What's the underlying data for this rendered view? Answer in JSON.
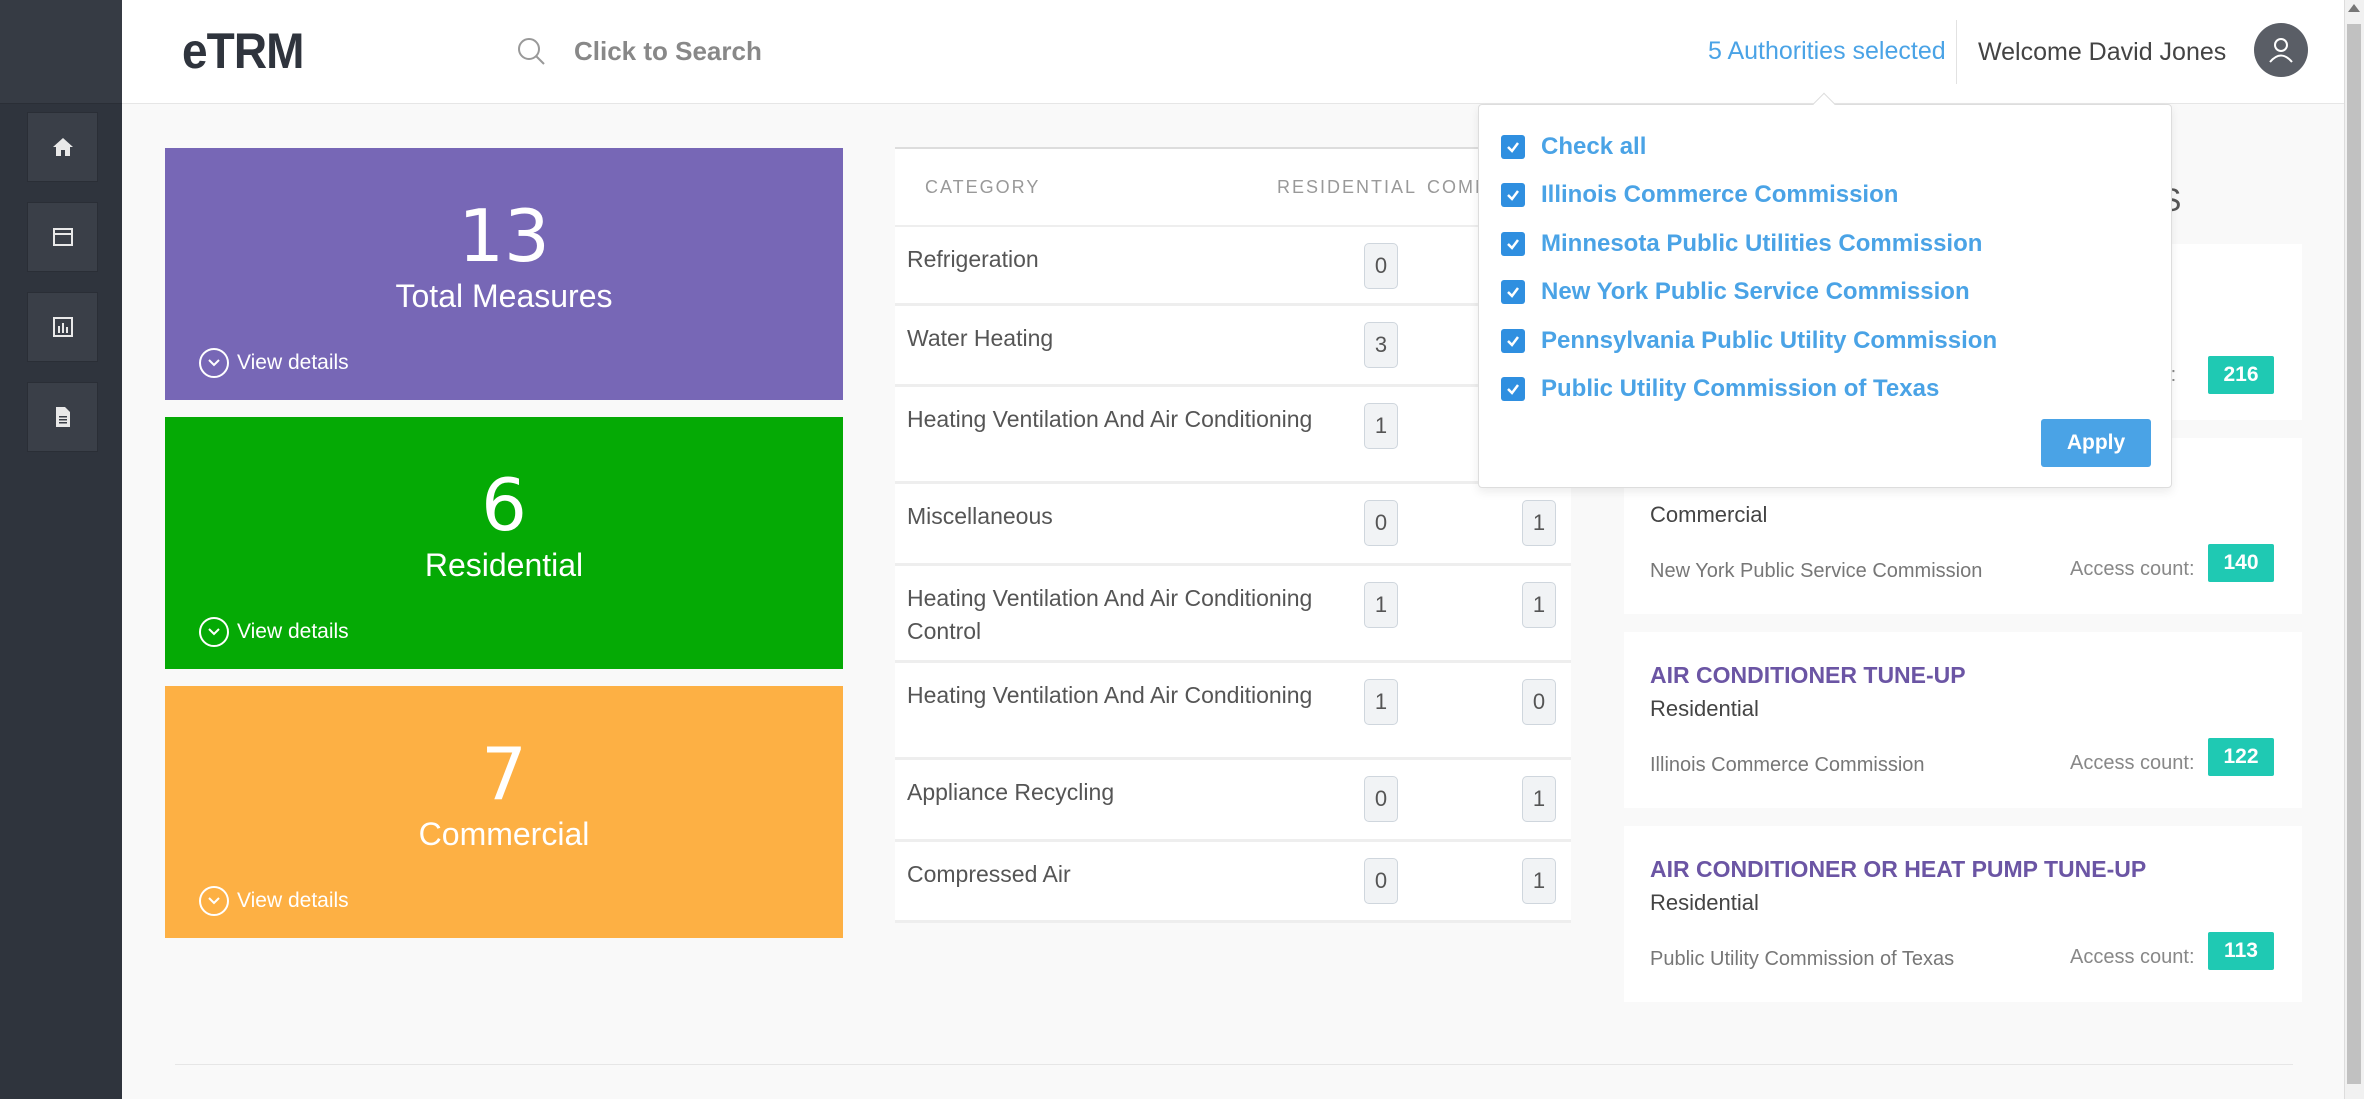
{
  "app": {
    "title": "eTRM"
  },
  "header": {
    "search_placeholder": "Click to Search",
    "authorities_selected": "5 Authorities selected",
    "welcome": "Welcome David Jones"
  },
  "sidebar": {
    "items": [
      {
        "icon": "home-icon"
      },
      {
        "icon": "window-icon"
      },
      {
        "icon": "chart-icon"
      },
      {
        "icon": "document-icon"
      }
    ]
  },
  "tiles": [
    {
      "value": "13",
      "label": "Total Measures",
      "details": "View details",
      "color": "#7767b6"
    },
    {
      "value": "6",
      "label": "Residential",
      "details": "View details",
      "color": "#05aa05"
    },
    {
      "value": "7",
      "label": "Commercial",
      "details": "View details",
      "color": "#fdb044"
    }
  ],
  "categories": {
    "headers": {
      "category": "CATEGORY",
      "residential": "RESIDENTIAL",
      "commercial": "COMM"
    },
    "rows": [
      {
        "name": "Refrigeration",
        "residential": "0",
        "commercial": ""
      },
      {
        "name": "Water Heating",
        "residential": "3",
        "commercial": ""
      },
      {
        "name": "Heating Ventilation And Air Conditioning",
        "residential": "1",
        "commercial": ""
      },
      {
        "name": "Miscellaneous",
        "residential": "0",
        "commercial": "1"
      },
      {
        "name": "Heating Ventilation And Air Conditioning Control",
        "residential": "1",
        "commercial": "1"
      },
      {
        "name": "Heating Ventilation And Air Conditioning",
        "residential": "1",
        "commercial": "0"
      },
      {
        "name": "Appliance Recycling",
        "residential": "0",
        "commercial": "1"
      },
      {
        "name": "Compressed Air",
        "residential": "0",
        "commercial": "1"
      }
    ]
  },
  "measures": {
    "title_fragment": "S",
    "access_label": "Access count:",
    "access_label_partial": "nt:",
    "items": [
      {
        "title": "",
        "type": "",
        "authority": "",
        "count": "216"
      },
      {
        "title": "",
        "type": "Commercial",
        "authority": "New York Public Service Commission",
        "count": "140"
      },
      {
        "title": "AIR CONDITIONER TUNE-UP",
        "type": "Residential",
        "authority": "Illinois Commerce Commission",
        "count": "122"
      },
      {
        "title": "AIR CONDITIONER OR HEAT PUMP TUNE-UP",
        "type": "Residential",
        "authority": "Public Utility Commission of Texas",
        "count": "113"
      }
    ]
  },
  "authority_dropdown": {
    "options": [
      {
        "label": "Check all",
        "checked": true
      },
      {
        "label": "Illinois Commerce Commission",
        "checked": true
      },
      {
        "label": "Minnesota Public Utilities Commission",
        "checked": true
      },
      {
        "label": "New York Public Service Commission",
        "checked": true
      },
      {
        "label": "Pennsylvania Public Utility Commission",
        "checked": true
      },
      {
        "label": "Public Utility Commission of Texas",
        "checked": true
      }
    ],
    "apply_label": "Apply"
  }
}
